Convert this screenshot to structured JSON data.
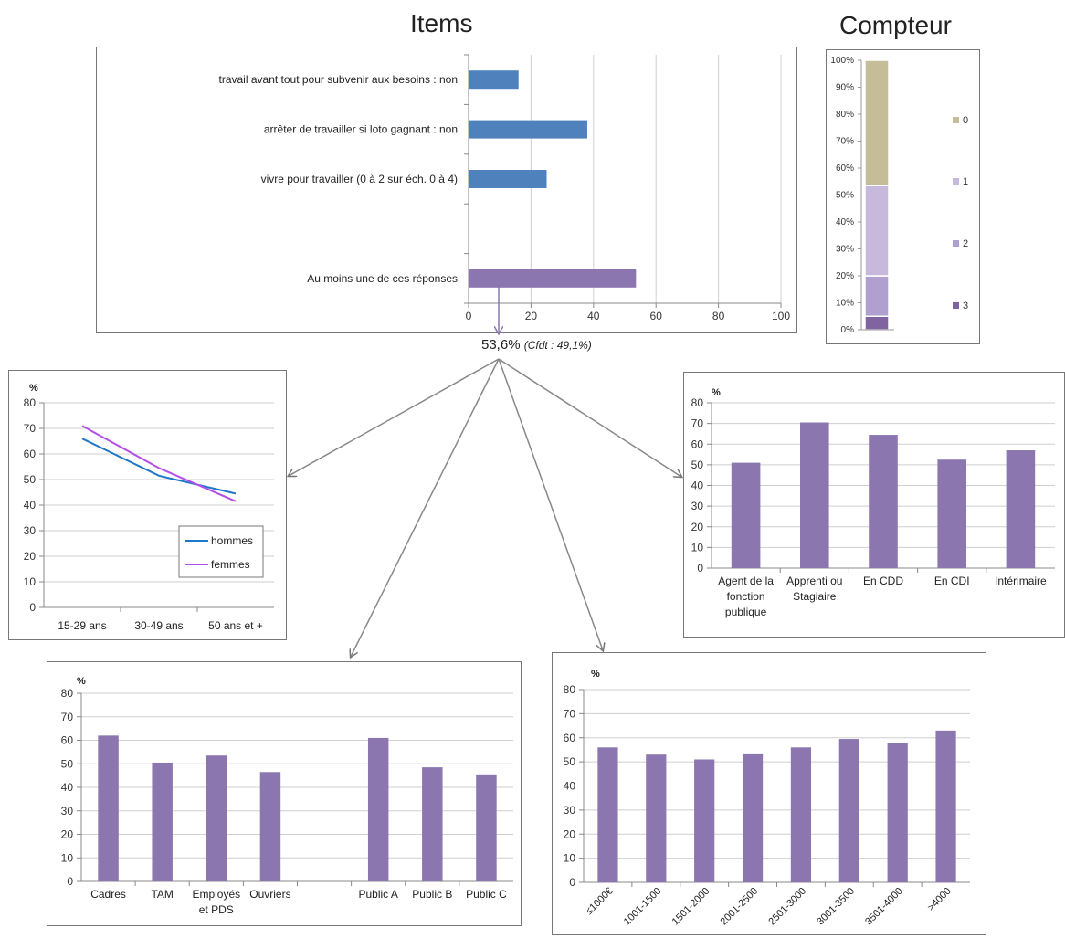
{
  "titles": {
    "items": "Items",
    "counter": "Compteur"
  },
  "summary": {
    "value": "53,6%",
    "note": "(Cfdt : 49,1%)"
  },
  "colors": {
    "blue": "#4f81bd",
    "purple": "#8c76b0",
    "line_men": "#1f77c8",
    "line_women": "#b44ee8",
    "stack0": "#c4bd97",
    "stack1": "#c6b9dc",
    "stack2": "#b0a0cf",
    "stack3": "#8064a2"
  },
  "chart_data": [
    {
      "id": "items",
      "type": "bar",
      "orientation": "horizontal",
      "categories": [
        "travail avant tout pour subvenir aux besoins : non",
        "arrêter de travailler si loto gagnant : non",
        "vivre pour travailler (0 à 2 sur éch. 0 à 4)",
        "",
        "Au moins une de ces réponses"
      ],
      "values": [
        16,
        38,
        25,
        null,
        53.6
      ],
      "xlim": [
        0,
        100
      ],
      "xticks": [
        "0",
        "20",
        "40",
        "60",
        "80",
        "100"
      ],
      "grid": true
    },
    {
      "id": "counter",
      "type": "bar",
      "stacked": true,
      "series": [
        {
          "name": "3",
          "value": 5
        },
        {
          "name": "2",
          "value": 15
        },
        {
          "name": "1",
          "value": 33.5
        },
        {
          "name": "0",
          "value": 46.5
        }
      ],
      "ylim": [
        0,
        100
      ],
      "yticks": [
        "0%",
        "10%",
        "20%",
        "30%",
        "40%",
        "50%",
        "60%",
        "70%",
        "80%",
        "90%",
        "100%"
      ],
      "legend": "right"
    },
    {
      "id": "age",
      "type": "line",
      "ylabel": "%",
      "categories": [
        "15-29 ans",
        "30-49 ans",
        "50 ans et +"
      ],
      "series": [
        {
          "name": "hommes",
          "values": [
            66,
            51.5,
            44.5
          ]
        },
        {
          "name": "femmes",
          "values": [
            71,
            54.5,
            41.5
          ]
        }
      ],
      "ylim": [
        0,
        80
      ],
      "yticks": [
        "0",
        "10",
        "20",
        "30",
        "40",
        "50",
        "60",
        "70",
        "80"
      ],
      "grid": true,
      "legend": "bottom-right"
    },
    {
      "id": "contract",
      "type": "bar",
      "ylabel": "%",
      "categories": [
        [
          "Agent de la",
          "fonction",
          "publique"
        ],
        [
          "Apprenti ou",
          "Stagiaire"
        ],
        [
          "En CDD"
        ],
        [
          "En CDI"
        ],
        [
          "Intérimaire"
        ]
      ],
      "values": [
        51,
        70.5,
        64.5,
        52.5,
        57
      ],
      "ylim": [
        0,
        80
      ],
      "yticks": [
        "0",
        "10",
        "20",
        "30",
        "40",
        "50",
        "60",
        "70",
        "80"
      ],
      "grid": true
    },
    {
      "id": "occupation",
      "type": "bar",
      "ylabel": "%",
      "categories": [
        [
          "Cadres"
        ],
        [
          "TAM"
        ],
        [
          "Employés",
          "et PDS"
        ],
        [
          "Ouvriers"
        ],
        [
          ""
        ],
        [
          "Public A"
        ],
        [
          "Public B"
        ],
        [
          "Public C"
        ]
      ],
      "values": [
        62,
        50.5,
        53.5,
        46.5,
        null,
        61,
        48.5,
        45.5
      ],
      "ylim": [
        0,
        80
      ],
      "yticks": [
        "0",
        "10",
        "20",
        "30",
        "40",
        "50",
        "60",
        "70",
        "80"
      ],
      "grid": true
    },
    {
      "id": "income",
      "type": "bar",
      "ylabel": "%",
      "categories": [
        "≤1000€",
        "1001-1500",
        "1501-2000",
        "2001-2500",
        "2501-3000",
        "3001-3500",
        "3501-4000",
        ">4000"
      ],
      "values": [
        56,
        53,
        51,
        53.5,
        56,
        59.5,
        58,
        63
      ],
      "ylim": [
        0,
        80
      ],
      "yticks": [
        "0",
        "10",
        "20",
        "30",
        "40",
        "50",
        "60",
        "70",
        "80"
      ],
      "grid": true
    }
  ]
}
